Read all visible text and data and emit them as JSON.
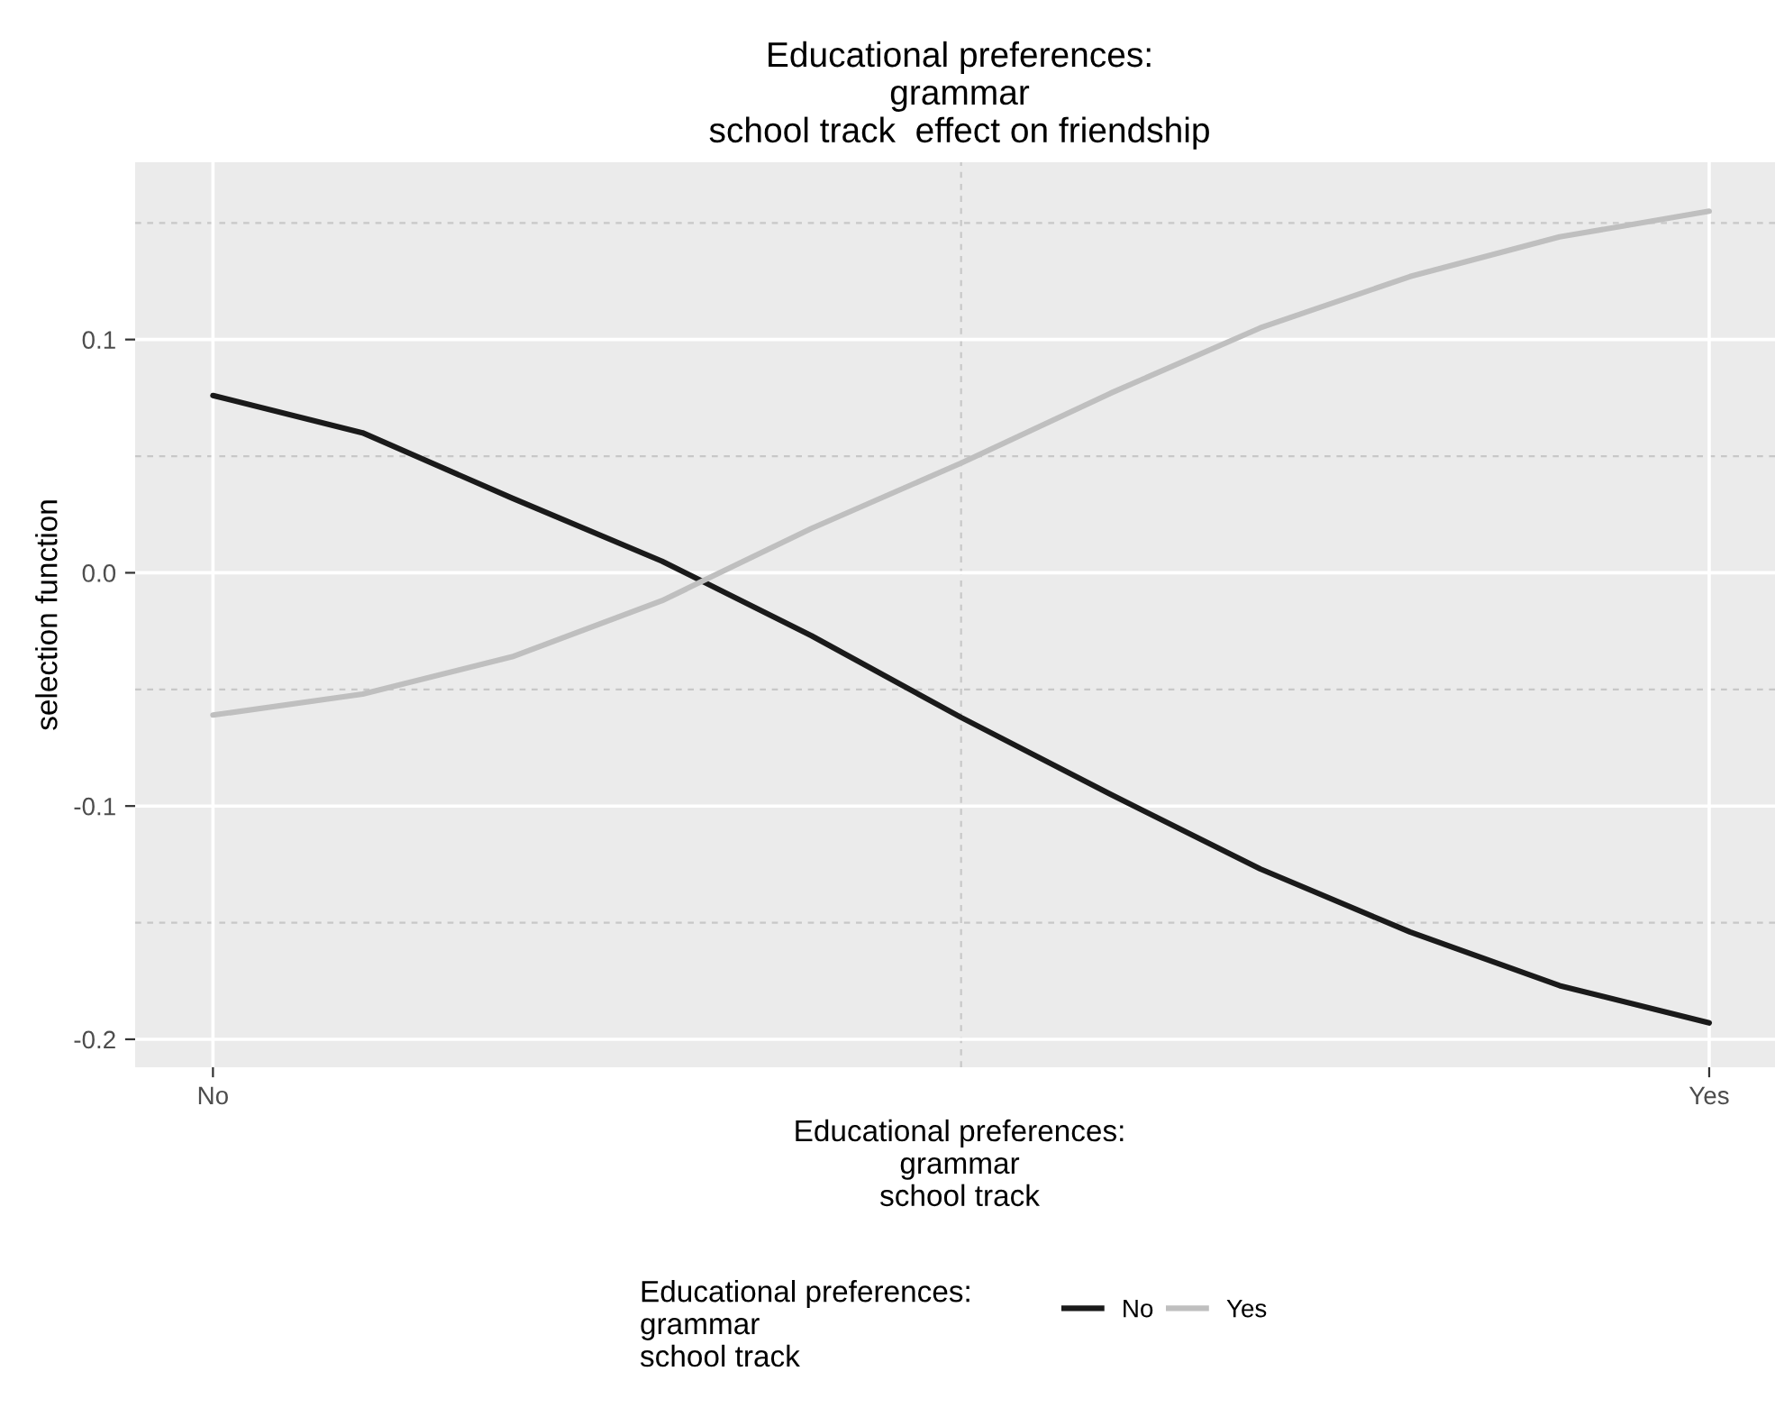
{
  "chart_data": {
    "type": "line",
    "title": "Educational preferences:\ngrammar\nschool track  effect on friendship",
    "xlabel": "Educational preferences:\ngrammar\nschool track",
    "ylabel": "selection function",
    "legend_title": "Educational preferences:\ngrammar\nschool track",
    "categories": [
      "No",
      null,
      null,
      null,
      null,
      null,
      null,
      null,
      null,
      null,
      "Yes"
    ],
    "series": [
      {
        "name": "No",
        "color": "#1a1a1a",
        "values": [
          0.076,
          0.06,
          0.032,
          0.005,
          -0.027,
          -0.062,
          -0.095,
          -0.127,
          -0.154,
          -0.177,
          -0.193
        ]
      },
      {
        "name": "Yes",
        "color": "#bfbfbf",
        "values": [
          -0.061,
          -0.052,
          -0.036,
          -0.012,
          0.019,
          0.047,
          0.077,
          0.105,
          0.127,
          0.144,
          0.155
        ]
      }
    ],
    "ylim": [
      -0.212,
      0.176
    ],
    "yticks": [
      {
        "value": -0.2,
        "label": "-0.2"
      },
      {
        "value": -0.1,
        "label": "-0.1"
      },
      {
        "value": 0,
        "label": "0.0"
      },
      {
        "value": 0.1,
        "label": "0.1"
      }
    ],
    "grid": true,
    "legend": "bottom",
    "line_style": "solid",
    "marker": "none"
  }
}
